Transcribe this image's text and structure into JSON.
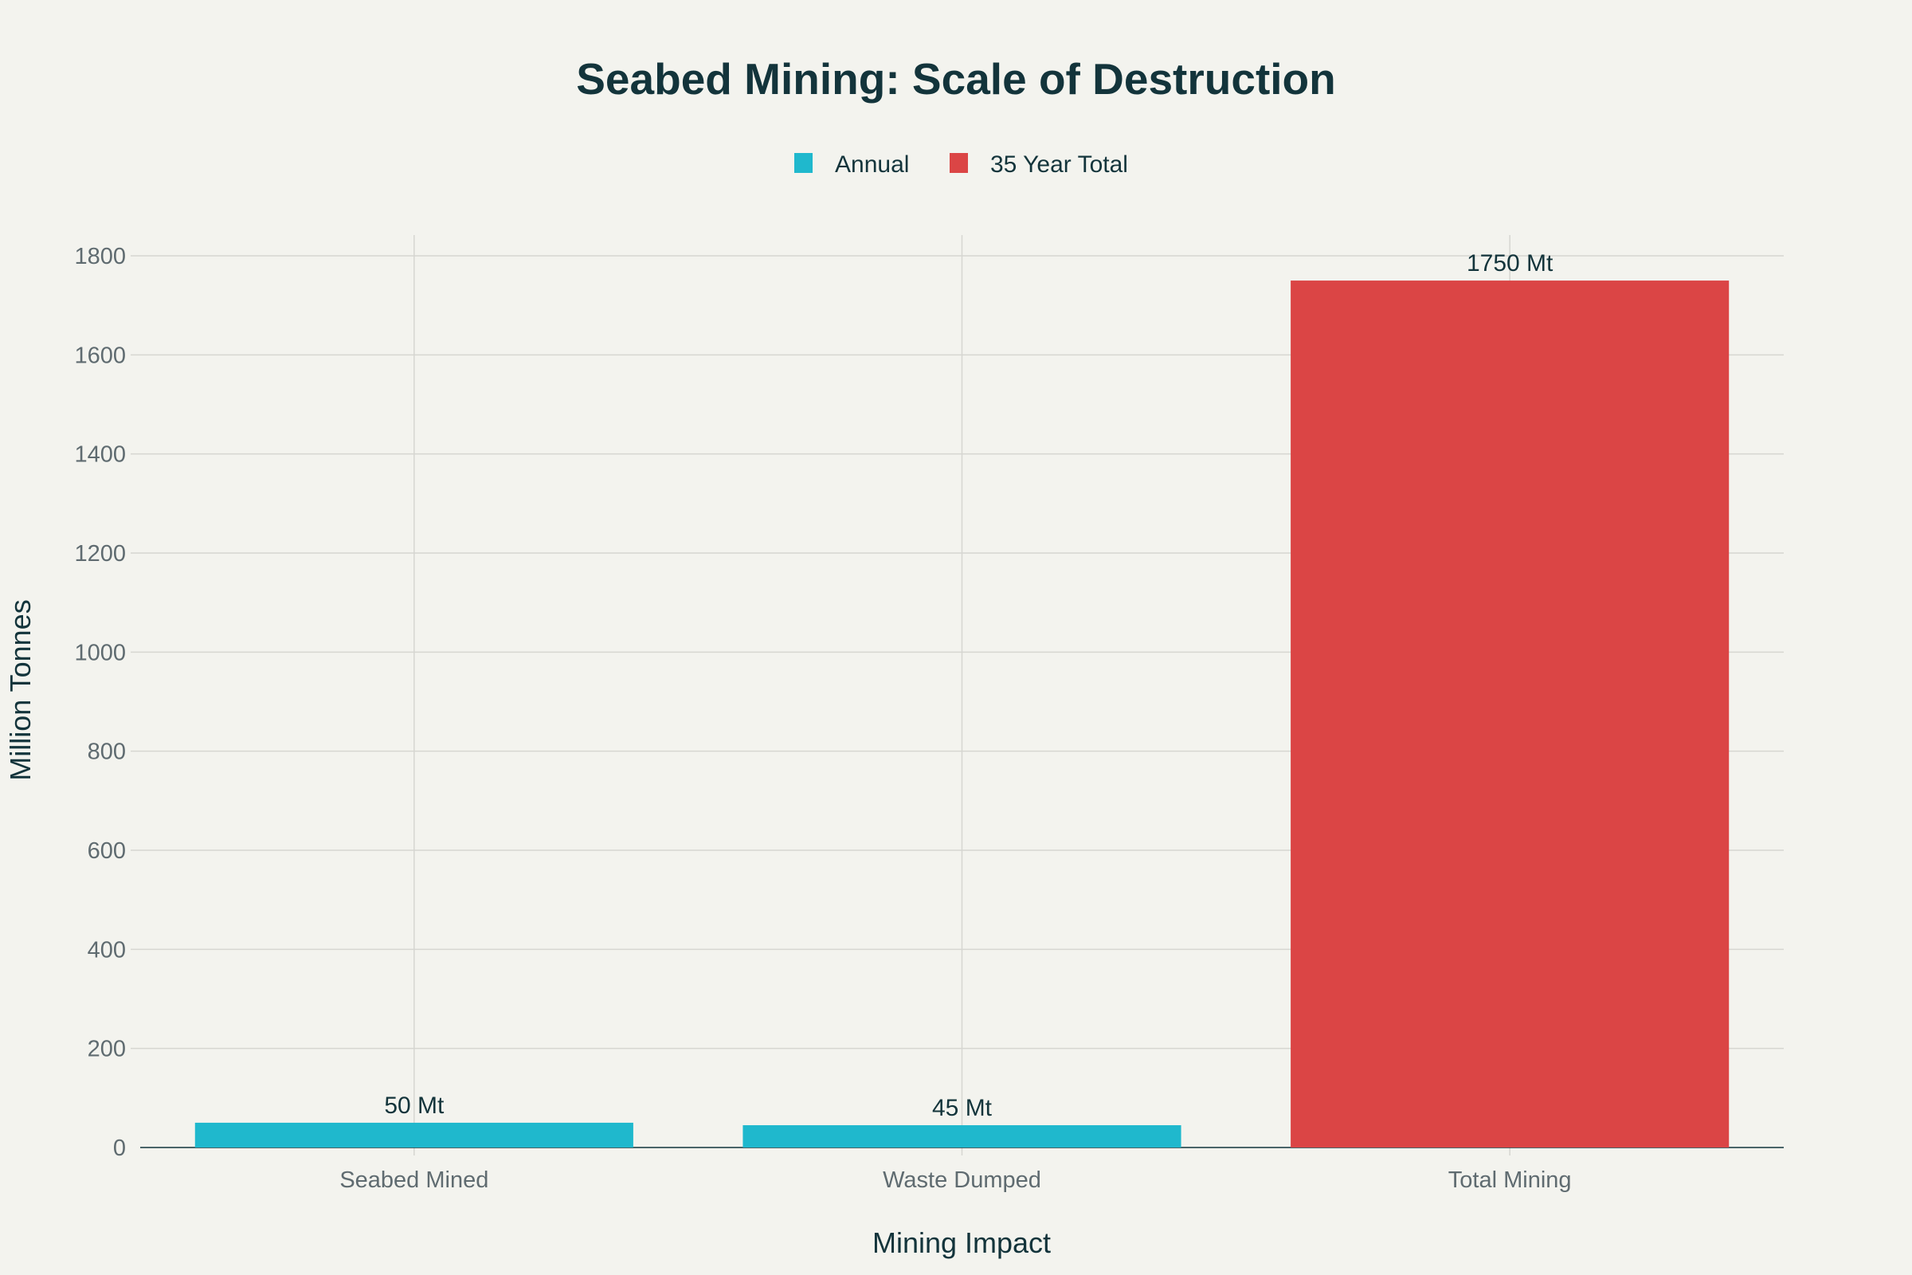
{
  "chart_data": {
    "type": "bar",
    "title": "Seabed Mining: Scale of Destruction",
    "xlabel": "Mining Impact",
    "ylabel": "Million Tonnes",
    "categories": [
      "Seabed Mined",
      "Waste Dumped",
      "Total Mining"
    ],
    "series": [
      {
        "name": "Annual",
        "color": "#1FB8CD",
        "values": [
          50,
          45,
          null
        ],
        "labels": [
          "50 Mt",
          "45 Mt",
          ""
        ]
      },
      {
        "name": "35 Year Total",
        "color": "#DB4545",
        "values": [
          null,
          null,
          1750
        ],
        "labels": [
          "",
          "",
          "1750 Mt"
        ]
      }
    ],
    "ylim": [
      0,
      1840
    ],
    "yticks": [
      "0",
      "200",
      "400",
      "600",
      "800",
      "1000",
      "1200",
      "1400",
      "1600",
      "1800"
    ],
    "grid": true,
    "legend": "top-center"
  }
}
